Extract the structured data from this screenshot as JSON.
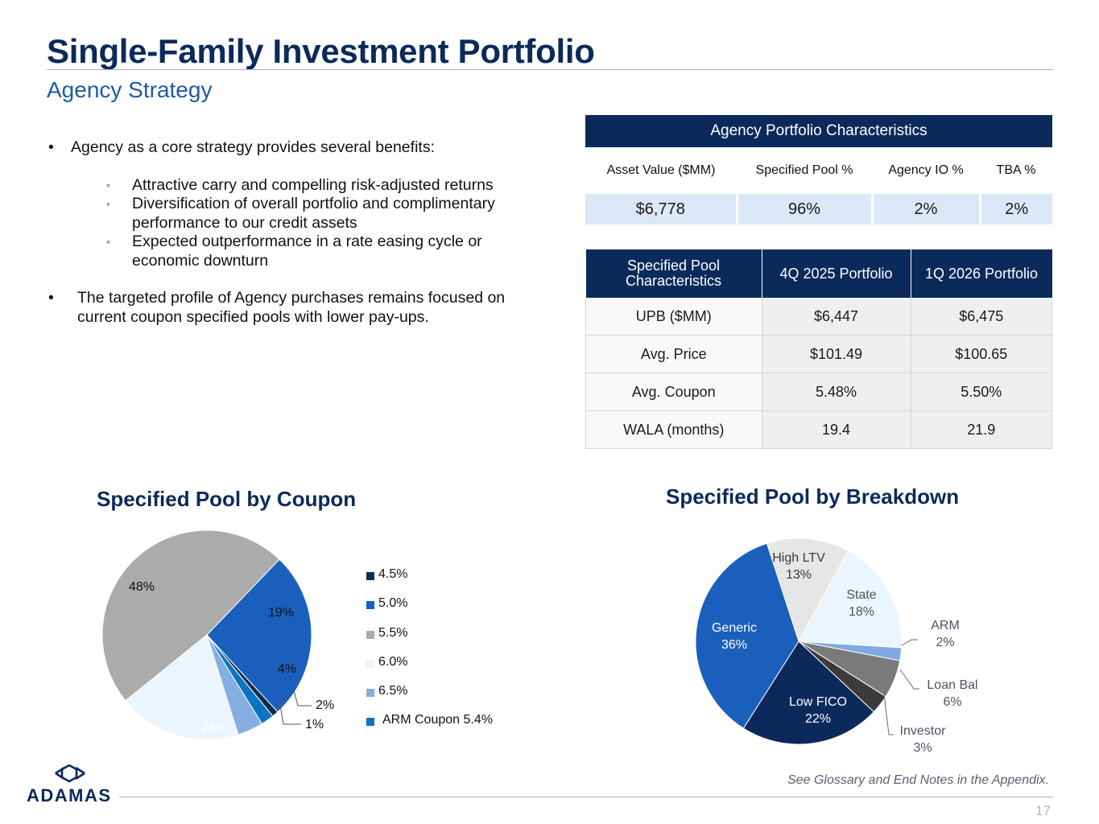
{
  "header": {
    "title": "Single-Family Investment Portfolio",
    "subtitle": "Agency Strategy"
  },
  "bullets": {
    "b1": "Agency as a core strategy provides several benefits:",
    "sub": [
      "Attractive carry and compelling risk-adjusted returns",
      "Diversification of overall portfolio and complimentary performance to our credit assets",
      "Expected outperformance in a rate easing cycle or economic downturn"
    ],
    "b2": "The targeted profile of Agency purchases remains focused on current coupon specified pools with lower pay-ups."
  },
  "agency_table": {
    "title": "Agency Portfolio Characteristics",
    "columns": [
      "Asset Value ($MM)",
      "Specified Pool %",
      "Agency IO %",
      "TBA %"
    ],
    "values": [
      "$6,778",
      "96%",
      "2%",
      "2%"
    ]
  },
  "spec_table": {
    "columns": [
      "Specified Pool Characteristics",
      "4Q 2025 Portfolio",
      "1Q 2026 Portfolio"
    ],
    "rows": [
      [
        "UPB ($MM)",
        "$6,447",
        "$6,475"
      ],
      [
        "Avg. Price",
        "$101.49",
        "$100.65"
      ],
      [
        "Avg. Coupon",
        "5.48%",
        "5.50%"
      ],
      [
        "WALA (months)",
        "19.4",
        "21.9"
      ]
    ]
  },
  "chart_data": [
    {
      "type": "pie",
      "title": "Specified Pool by Coupon",
      "slices": [
        {
          "name": "4.5%",
          "value": 1,
          "label": "1%",
          "color": "#0d2f4f"
        },
        {
          "name": "5.0%",
          "value": 26,
          "label": "26%",
          "color": "#1b5fbd"
        },
        {
          "name": "5.5%",
          "value": 48,
          "label": "48%",
          "color": "#ababab"
        },
        {
          "name": "6.0%",
          "value": 19,
          "label": "19%",
          "color": "#eaf5fd"
        },
        {
          "name": "6.5%",
          "value": 4,
          "label": "4%",
          "color": "#86aee2"
        },
        {
          "name": "ARM Coupon 5.4%",
          "value": 2,
          "label": "2%",
          "color": "#0a73c4"
        }
      ],
      "legend": "right"
    },
    {
      "type": "pie",
      "title": "Specified Pool by Breakdown",
      "slices": [
        {
          "name": "High LTV",
          "value": 13,
          "label": "13%",
          "color": "#e6e6e6"
        },
        {
          "name": "State",
          "value": 18,
          "label": "18%",
          "color": "#eaf5fd"
        },
        {
          "name": "ARM",
          "value": 2,
          "label": "2%",
          "color": "#7fa9e0"
        },
        {
          "name": "Loan Bal",
          "value": 6,
          "label": "6%",
          "color": "#7a7a7a"
        },
        {
          "name": "Investor",
          "value": 3,
          "label": "3%",
          "color": "#3b3b3b"
        },
        {
          "name": "Low FICO",
          "value": 22,
          "label": "22%",
          "color": "#0b2a5b"
        },
        {
          "name": "Generic",
          "value": 36,
          "label": "36%",
          "color": "#1b5fbd"
        }
      ],
      "legend": "none"
    }
  ],
  "footer": {
    "logo_text": "ADAMAS",
    "note": "See Glossary and End Notes in the Appendix.",
    "page": "17"
  }
}
